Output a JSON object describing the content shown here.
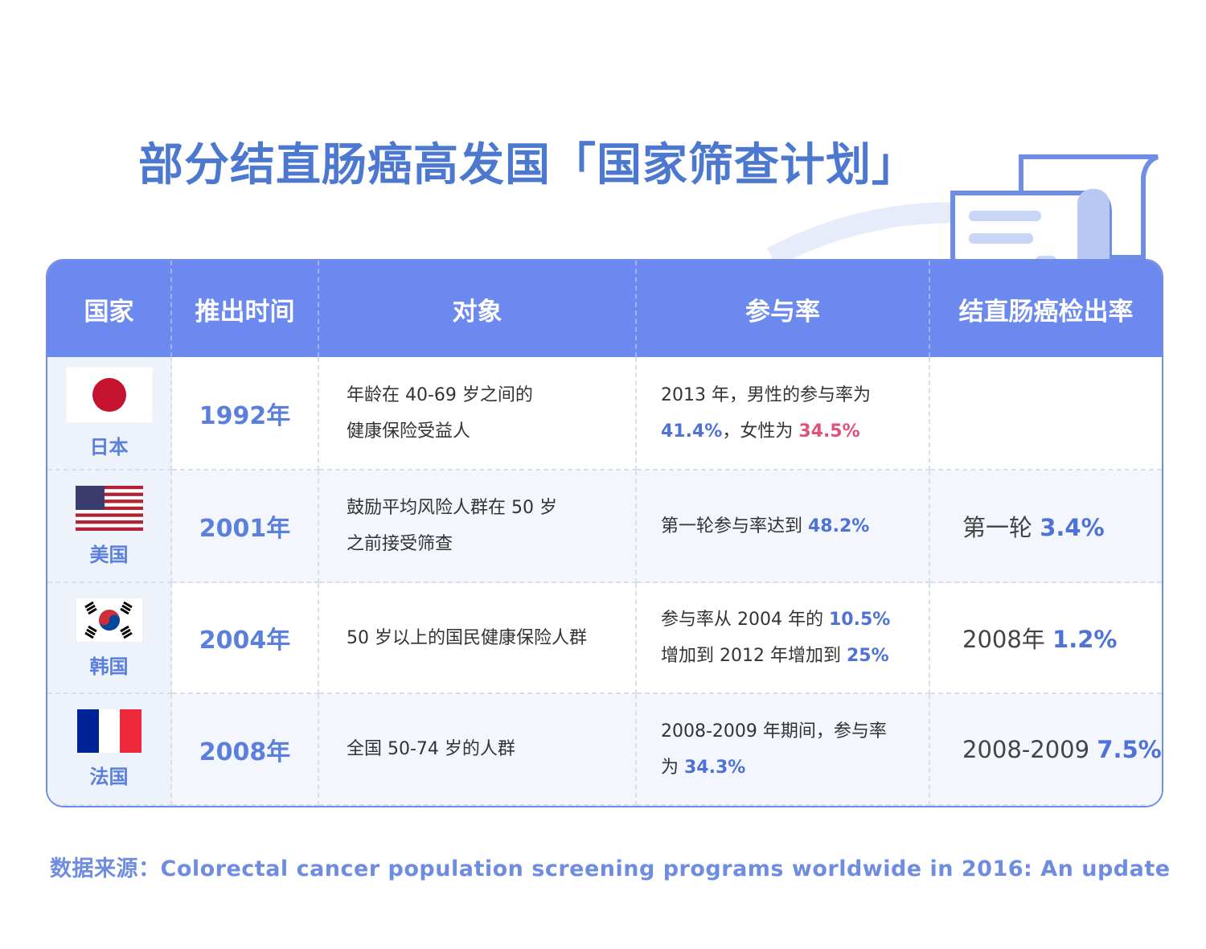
{
  "title": "部分结直肠癌高发国「国家筛查计划」",
  "table": {
    "headers": [
      "国家",
      "推出时间",
      "对象",
      "参与率",
      "结直肠癌检出率"
    ],
    "rows": [
      {
        "country": "日本",
        "year": "1992年",
        "target": [
          "年龄在 40-69 岁之间的",
          "健康保险受益人"
        ],
        "participation": [
          [
            {
              "text": "2013 年，男性的参与率为"
            }
          ],
          [
            {
              "text": "41.4%",
              "color": "#4f72d6"
            },
            {
              "text": "，女性为 "
            },
            {
              "text": "34.5%",
              "color": "#e0527c"
            }
          ]
        ]
      },
      {
        "country": "美国",
        "year": "2001年",
        "target": [
          "鼓励平均风险人群在 50 岁",
          "之前接受筛查"
        ],
        "participation": [
          [
            {
              "text": "第一轮参与率达到 "
            },
            {
              "text": "48.2%",
              "color": "#4f72d6"
            }
          ]
        ],
        "detection": [
          {
            "text": "第一轮 "
          },
          {
            "text": "3.4%",
            "color": "#4f72d6"
          }
        ]
      },
      {
        "country": "韩国",
        "year": "2004年",
        "target": [
          "50 岁以上的国民健康保险人群"
        ],
        "participation": [
          [
            {
              "text": "参与率从 2004 年的 "
            },
            {
              "text": "10.5%",
              "color": "#4f72d6"
            }
          ],
          [
            {
              "text": "增加到 2012 年增加到 "
            },
            {
              "text": "25%",
              "color": "#4f72d6"
            }
          ]
        ],
        "detection": [
          {
            "text": "2008年 "
          },
          {
            "text": "1.2%",
            "color": "#4f72d6"
          }
        ]
      },
      {
        "country": "法国",
        "year": "2008年",
        "target": [
          "全国 50-74 岁的人群"
        ],
        "participation": [
          [
            {
              "text": "2008-2009 年期间，参与率"
            }
          ],
          [
            {
              "text": "为 "
            },
            {
              "text": "34.3%",
              "color": "#4f72d6"
            }
          ]
        ],
        "detection": [
          {
            "text": "2008-2009 "
          },
          {
            "text": "7.5%",
            "color": "#4f72d6"
          }
        ]
      }
    ]
  },
  "source": "数据来源：Colorectal cancer population screening programs worldwide in 2016: An update"
}
